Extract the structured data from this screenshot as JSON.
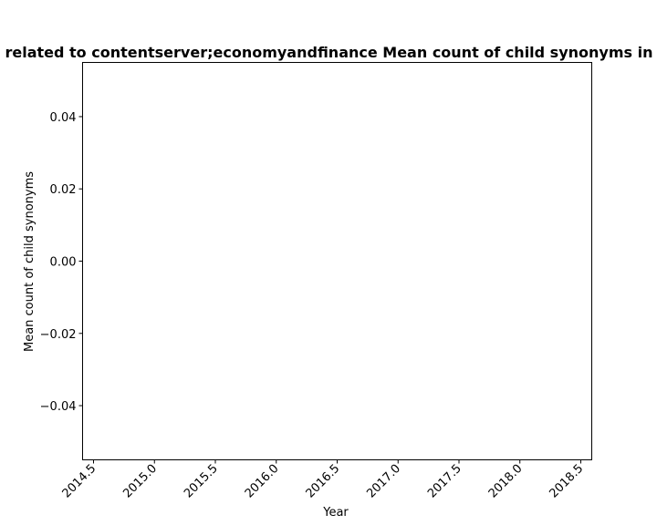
{
  "chart_data": {
    "type": "line",
    "title": "related to contentserver;economyandfinance Mean count of child synonyms in p",
    "xlabel": "Year",
    "ylabel": "Mean count of child synonyms",
    "xlim": [
      2014.41,
      2018.59
    ],
    "ylim": [
      -0.055,
      0.055
    ],
    "x_ticks": [
      "2014.5",
      "2015.0",
      "2015.5",
      "2016.0",
      "2016.5",
      "2017.0",
      "2017.5",
      "2018.0",
      "2018.5"
    ],
    "y_ticks": [
      "0.04",
      "0.02",
      "0.00",
      "−0.02",
      "−0.04"
    ],
    "series": [],
    "grid": false,
    "legend": "none"
  }
}
